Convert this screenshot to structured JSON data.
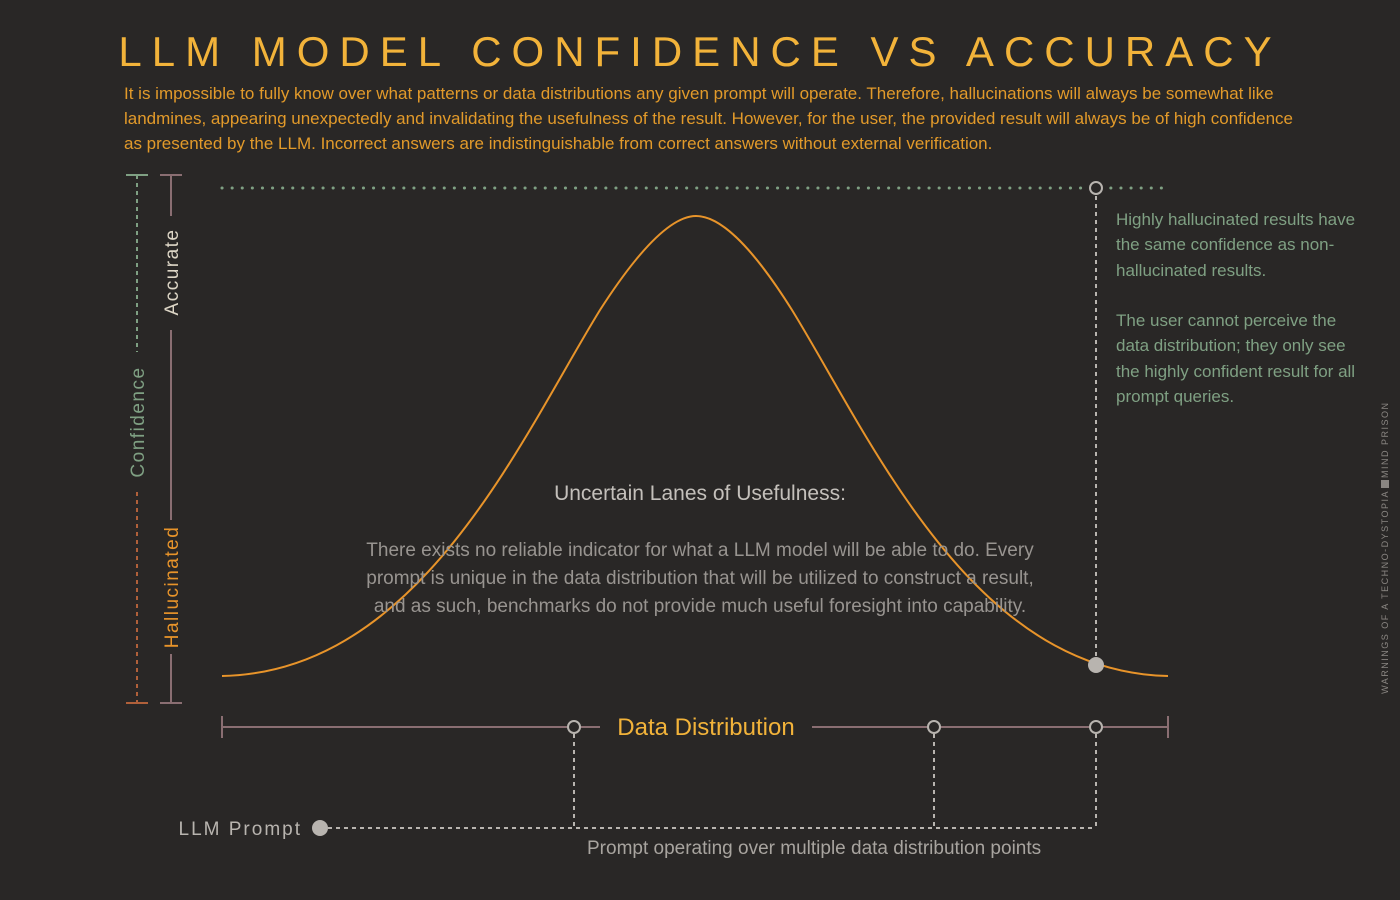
{
  "title": "LLM MODEL CONFIDENCE VS ACCURACY",
  "intro": "It is impossible to fully know over what patterns or data distributions any given prompt will operate. Therefore, hallucinations will always be somewhat like landmines, appearing unexpectedly and invalidating the usefulness of the result. However, for the user, the provided result will always be of high confidence as presented by the LLM. Incorrect answers are indistinguishable from correct answers without external verification.",
  "axes": {
    "confidence": "Confidence",
    "accurate": "Accurate",
    "hallucinated": "Hallucinated",
    "data_distribution": "Data Distribution"
  },
  "center": {
    "heading": "Uncertain Lanes of Usefulness:",
    "body": "There exists no reliable indicator for what a LLM model will be able to do. Every prompt is unique in the data distribution that will be utilized to construct a result, and as such, benchmarks do not provide much useful foresight into capability."
  },
  "notes": {
    "note1": "Highly hallucinated results have the same confidence as non-hallucinated results.",
    "note2": "The user cannot perceive the data distribution; they only see the highly confident result for all prompt queries."
  },
  "prompt_label": "LLM Prompt",
  "prompt_caption": "Prompt operating over multiple data distribution points",
  "credit": {
    "left": "WARNINGS OF A TECHNO-DYSTOPIA",
    "right": "MIND PRISON"
  },
  "colors": {
    "background": "#292726",
    "title": "#f2b33a",
    "curve": "#e8942a",
    "confidence_axis": "#7fa083",
    "accuracy_axis": "#8a6e72",
    "hallucinated_axis": "#b0603a",
    "text_gray": "#a8a49f"
  }
}
